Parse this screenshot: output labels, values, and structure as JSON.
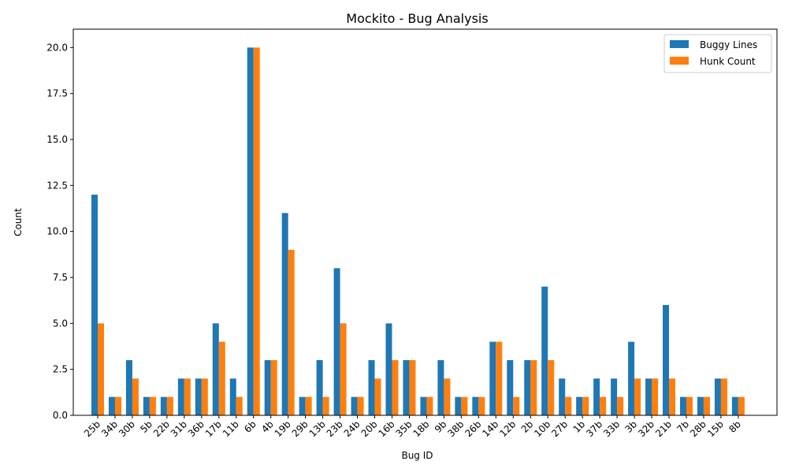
{
  "chart_data": {
    "type": "bar",
    "title": "Mockito - Bug Analysis",
    "xlabel": "Bug ID",
    "ylabel": "Count",
    "ylim": [
      0,
      21
    ],
    "yticks": [
      0.0,
      2.5,
      5.0,
      7.5,
      10.0,
      12.5,
      15.0,
      17.5,
      20.0
    ],
    "ytick_labels": [
      "0.0",
      "2.5",
      "5.0",
      "7.5",
      "10.0",
      "12.5",
      "15.0",
      "17.5",
      "20.0"
    ],
    "legend_position": "top-right",
    "grid": false,
    "categories": [
      "25b",
      "34b",
      "30b",
      "5b",
      "22b",
      "31b",
      "36b",
      "17b",
      "11b",
      "6b",
      "4b",
      "19b",
      "29b",
      "13b",
      "23b",
      "24b",
      "20b",
      "16b",
      "35b",
      "18b",
      "9b",
      "38b",
      "26b",
      "14b",
      "12b",
      "2b",
      "10b",
      "27b",
      "1b",
      "37b",
      "33b",
      "3b",
      "32b",
      "21b",
      "7b",
      "28b",
      "15b",
      "8b"
    ],
    "series": [
      {
        "name": "Buggy Lines",
        "color": "#1f77b4",
        "values": [
          12,
          1,
          3,
          1,
          1,
          2,
          2,
          5,
          2,
          20,
          3,
          11,
          1,
          3,
          8,
          1,
          3,
          5,
          3,
          1,
          3,
          1,
          1,
          4,
          3,
          3,
          7,
          2,
          1,
          2,
          2,
          4,
          2,
          6,
          1,
          1,
          2,
          1
        ]
      },
      {
        "name": "Hunk Count",
        "color": "#ff7f0e",
        "values": [
          5,
          1,
          2,
          1,
          1,
          2,
          2,
          4,
          1,
          20,
          3,
          9,
          1,
          1,
          5,
          1,
          2,
          3,
          3,
          1,
          2,
          1,
          1,
          4,
          1,
          3,
          3,
          1,
          1,
          1,
          1,
          2,
          2,
          2,
          1,
          1,
          2,
          1
        ]
      }
    ]
  }
}
